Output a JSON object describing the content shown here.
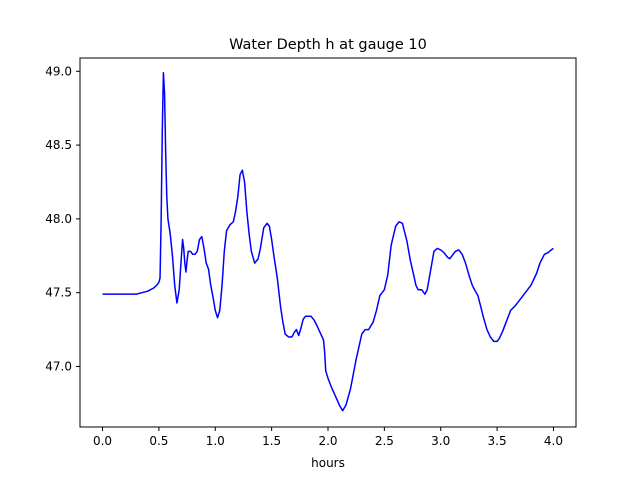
{
  "chart_data": {
    "type": "line",
    "title": "Water Depth h at gauge 10",
    "xlabel": "hours",
    "ylabel": "",
    "xlim": [
      -0.2,
      4.2
    ],
    "ylim": [
      46.59,
      49.09
    ],
    "x_ticks": [
      0.0,
      0.5,
      1.0,
      1.5,
      2.0,
      2.5,
      3.0,
      3.5,
      4.0
    ],
    "x_tick_labels": [
      "0.0",
      "0.5",
      "1.0",
      "1.5",
      "2.0",
      "2.5",
      "3.0",
      "3.5",
      "4.0"
    ],
    "y_ticks": [
      47.0,
      47.5,
      48.0,
      48.5,
      49.0
    ],
    "y_tick_labels": [
      "47.0",
      "47.5",
      "48.0",
      "48.5",
      "49.0"
    ],
    "grid": false,
    "series": [
      {
        "color": "#0000ff",
        "points": [
          [
            0.0,
            47.49
          ],
          [
            0.15,
            47.49
          ],
          [
            0.3,
            47.49
          ],
          [
            0.35,
            47.5
          ],
          [
            0.4,
            47.51
          ],
          [
            0.45,
            47.53
          ],
          [
            0.48,
            47.55
          ],
          [
            0.5,
            47.57
          ],
          [
            0.51,
            47.6
          ],
          [
            0.52,
            48.0
          ],
          [
            0.53,
            48.6
          ],
          [
            0.54,
            48.99
          ],
          [
            0.55,
            48.85
          ],
          [
            0.56,
            48.45
          ],
          [
            0.57,
            48.15
          ],
          [
            0.58,
            48.0
          ],
          [
            0.6,
            47.9
          ],
          [
            0.62,
            47.75
          ],
          [
            0.64,
            47.55
          ],
          [
            0.66,
            47.43
          ],
          [
            0.68,
            47.52
          ],
          [
            0.7,
            47.75
          ],
          [
            0.71,
            47.86
          ],
          [
            0.72,
            47.8
          ],
          [
            0.73,
            47.7
          ],
          [
            0.74,
            47.64
          ],
          [
            0.75,
            47.72
          ],
          [
            0.76,
            47.78
          ],
          [
            0.78,
            47.78
          ],
          [
            0.8,
            47.76
          ],
          [
            0.82,
            47.76
          ],
          [
            0.84,
            47.78
          ],
          [
            0.86,
            47.86
          ],
          [
            0.88,
            47.88
          ],
          [
            0.9,
            47.8
          ],
          [
            0.92,
            47.7
          ],
          [
            0.94,
            47.66
          ],
          [
            0.96,
            47.55
          ],
          [
            0.98,
            47.47
          ],
          [
            1.0,
            47.38
          ],
          [
            1.02,
            47.33
          ],
          [
            1.04,
            47.38
          ],
          [
            1.06,
            47.55
          ],
          [
            1.08,
            47.78
          ],
          [
            1.1,
            47.92
          ],
          [
            1.13,
            47.96
          ],
          [
            1.16,
            47.98
          ],
          [
            1.18,
            48.05
          ],
          [
            1.2,
            48.15
          ],
          [
            1.22,
            48.3
          ],
          [
            1.24,
            48.33
          ],
          [
            1.26,
            48.25
          ],
          [
            1.28,
            48.05
          ],
          [
            1.3,
            47.9
          ],
          [
            1.32,
            47.78
          ],
          [
            1.35,
            47.7
          ],
          [
            1.38,
            47.73
          ],
          [
            1.4,
            47.8
          ],
          [
            1.43,
            47.94
          ],
          [
            1.46,
            47.97
          ],
          [
            1.48,
            47.95
          ],
          [
            1.5,
            47.86
          ],
          [
            1.52,
            47.75
          ],
          [
            1.55,
            47.6
          ],
          [
            1.58,
            47.4
          ],
          [
            1.6,
            47.3
          ],
          [
            1.62,
            47.22
          ],
          [
            1.65,
            47.2
          ],
          [
            1.68,
            47.2
          ],
          [
            1.7,
            47.23
          ],
          [
            1.72,
            47.25
          ],
          [
            1.74,
            47.21
          ],
          [
            1.76,
            47.26
          ],
          [
            1.78,
            47.32
          ],
          [
            1.8,
            47.34
          ],
          [
            1.85,
            47.34
          ],
          [
            1.88,
            47.31
          ],
          [
            1.9,
            47.28
          ],
          [
            1.93,
            47.23
          ],
          [
            1.96,
            47.18
          ],
          [
            1.97,
            47.1
          ],
          [
            1.98,
            46.97
          ],
          [
            2.0,
            46.92
          ],
          [
            2.03,
            46.86
          ],
          [
            2.06,
            46.81
          ],
          [
            2.1,
            46.74
          ],
          [
            2.13,
            46.7
          ],
          [
            2.16,
            46.74
          ],
          [
            2.2,
            46.85
          ],
          [
            2.25,
            47.05
          ],
          [
            2.3,
            47.22
          ],
          [
            2.33,
            47.25
          ],
          [
            2.36,
            47.25
          ],
          [
            2.4,
            47.3
          ],
          [
            2.43,
            47.38
          ],
          [
            2.46,
            47.48
          ],
          [
            2.5,
            47.52
          ],
          [
            2.53,
            47.62
          ],
          [
            2.56,
            47.82
          ],
          [
            2.6,
            47.95
          ],
          [
            2.63,
            47.98
          ],
          [
            2.66,
            47.97
          ],
          [
            2.7,
            47.85
          ],
          [
            2.73,
            47.72
          ],
          [
            2.76,
            47.62
          ],
          [
            2.78,
            47.55
          ],
          [
            2.8,
            47.52
          ],
          [
            2.83,
            47.52
          ],
          [
            2.86,
            47.49
          ],
          [
            2.88,
            47.52
          ],
          [
            2.91,
            47.65
          ],
          [
            2.94,
            47.78
          ],
          [
            2.97,
            47.8
          ],
          [
            3.0,
            47.79
          ],
          [
            3.03,
            47.77
          ],
          [
            3.06,
            47.74
          ],
          [
            3.08,
            47.73
          ],
          [
            3.1,
            47.75
          ],
          [
            3.13,
            47.78
          ],
          [
            3.16,
            47.79
          ],
          [
            3.19,
            47.76
          ],
          [
            3.22,
            47.7
          ],
          [
            3.25,
            47.62
          ],
          [
            3.28,
            47.55
          ],
          [
            3.3,
            47.52
          ],
          [
            3.33,
            47.48
          ],
          [
            3.35,
            47.42
          ],
          [
            3.38,
            47.33
          ],
          [
            3.41,
            47.25
          ],
          [
            3.44,
            47.2
          ],
          [
            3.47,
            47.17
          ],
          [
            3.5,
            47.17
          ],
          [
            3.52,
            47.19
          ],
          [
            3.55,
            47.24
          ],
          [
            3.58,
            47.3
          ],
          [
            3.62,
            47.38
          ],
          [
            3.66,
            47.41
          ],
          [
            3.7,
            47.45
          ],
          [
            3.75,
            47.5
          ],
          [
            3.8,
            47.55
          ],
          [
            3.85,
            47.63
          ],
          [
            3.88,
            47.7
          ],
          [
            3.92,
            47.76
          ],
          [
            3.95,
            47.77
          ],
          [
            3.98,
            47.79
          ],
          [
            4.0,
            47.8
          ]
        ]
      }
    ]
  }
}
